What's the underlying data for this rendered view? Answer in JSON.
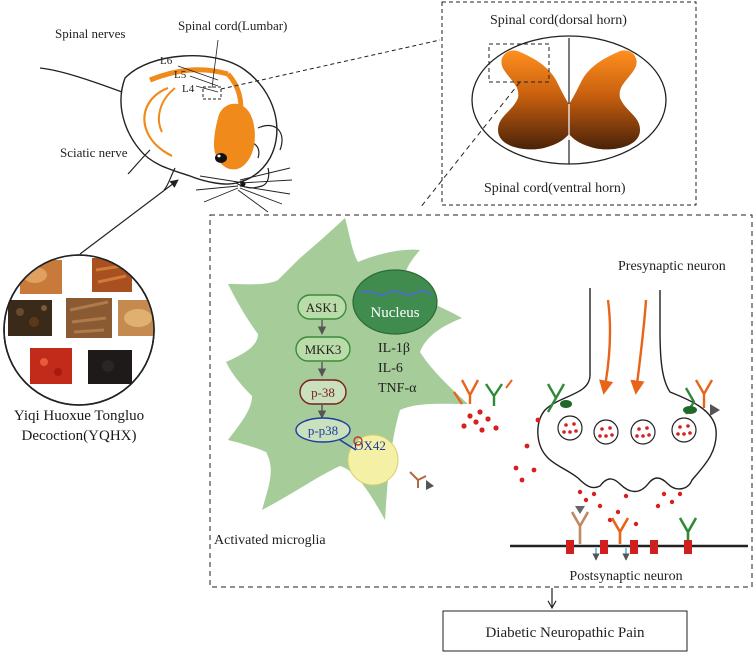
{
  "labels": {
    "spinal_nerves": "Spinal nerves",
    "spinal_cord_lumbar": "Spinal cord(Lumbar)",
    "l6": "L6",
    "l5": "L5",
    "l4": "L4",
    "sciatic_nerve": "Sciatic nerve",
    "dorsal_horn": "Spinal cord(dorsal horn)",
    "ventral_horn": "Spinal cord(ventral horn)",
    "herb_line1": "Yiqi Huoxue Tongluo",
    "herb_line2": "Decoction(YQHX)",
    "nucleus": "Nucleus",
    "ask1": "ASK1",
    "mkk3": "MKK3",
    "p38": "p-38",
    "pp38": "p-p38",
    "ox42": "OX42",
    "il1b": "IL-1β",
    "il6": "IL-6",
    "tnfa": "TNF-α",
    "activated_microglia": "Activated microglia",
    "presynaptic_neuron": "Presynaptic neuron",
    "postsynaptic_neuron": "Postsynaptic neuron",
    "diabetic_pain": "Diabetic Neuropathic Pain"
  },
  "colors": {
    "microglia": "#a9cf9e",
    "pathway_box": "#cfe6c3",
    "pathway_border": "#3c8a3c",
    "nucleus": "#3d8a4a",
    "p38_border": "#7a1f1f",
    "pp38_border": "#1f3c9e",
    "orange": "#f07a10",
    "spinal_gradient_top": "#ff8c1a",
    "spinal_gradient_bottom": "#5a2a0a",
    "vesicle_dot": "#d71f1f"
  }
}
